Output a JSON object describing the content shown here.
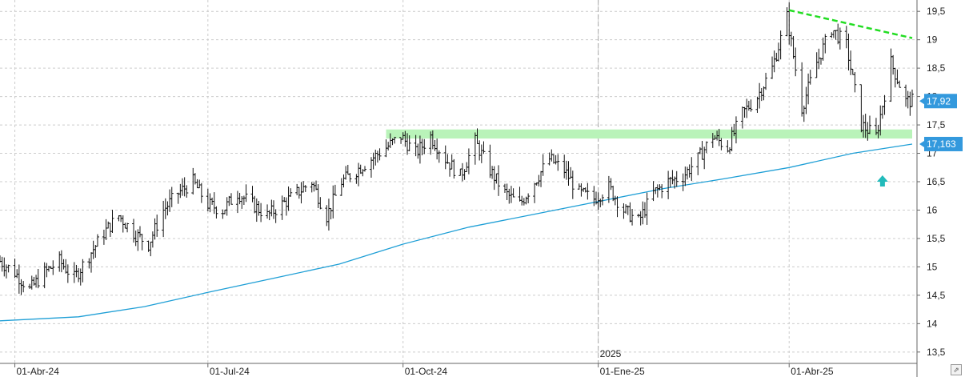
{
  "chart_data": {
    "type": "ohlc",
    "title": "",
    "xlabel": "",
    "ylabel": "",
    "ylim": [
      13.3,
      19.7
    ],
    "y_ticks": [
      "13,5",
      "14",
      "14,5",
      "15",
      "15,5",
      "16",
      "16,5",
      "17",
      "17,5",
      "18",
      "18,5",
      "19",
      "19,5"
    ],
    "y_tick_values": [
      13.5,
      14,
      14.5,
      15,
      15.5,
      16,
      16.5,
      17,
      17.5,
      18,
      18.5,
      19,
      19.5
    ],
    "x_ticks": [
      {
        "date": "2024-04-01",
        "label": "01-Abr-24"
      },
      {
        "date": "2024-07-01",
        "label": "01-Jul-24"
      },
      {
        "date": "2024-10-01",
        "label": "01-Oct-24"
      },
      {
        "date": "2025-01-01",
        "label": "01-Ene-25"
      },
      {
        "date": "2025-04-01",
        "label": "01-Abr-25"
      }
    ],
    "year_marker": {
      "date": "2025-01-01",
      "label": "2025"
    },
    "x_range": [
      "2024-03-25",
      "2025-05-29"
    ],
    "grid": true,
    "close_path": [
      [
        "2024-03-25",
        15.1
      ],
      [
        "2024-04-01",
        14.9
      ],
      [
        "2024-04-08",
        14.6
      ],
      [
        "2024-04-15",
        14.9
      ],
      [
        "2024-04-22",
        15.1
      ],
      [
        "2024-04-29",
        14.8
      ],
      [
        "2024-05-06",
        15.2
      ],
      [
        "2024-05-13",
        15.6
      ],
      [
        "2024-05-20",
        15.9
      ],
      [
        "2024-05-27",
        15.6
      ],
      [
        "2024-06-03",
        15.4
      ],
      [
        "2024-06-10",
        16.0
      ],
      [
        "2024-06-17",
        16.3
      ],
      [
        "2024-06-24",
        16.5
      ],
      [
        "2024-07-01",
        16.1
      ],
      [
        "2024-07-08",
        16.0
      ],
      [
        "2024-07-15",
        16.3
      ],
      [
        "2024-07-22",
        16.1
      ],
      [
        "2024-07-29",
        15.9
      ],
      [
        "2024-08-05",
        16.1
      ],
      [
        "2024-08-12",
        16.3
      ],
      [
        "2024-08-19",
        16.5
      ],
      [
        "2024-08-26",
        15.9
      ],
      [
        "2024-09-02",
        16.5
      ],
      [
        "2024-09-09",
        16.7
      ],
      [
        "2024-09-16",
        16.9
      ],
      [
        "2024-09-23",
        17.1
      ],
      [
        "2024-09-30",
        17.3
      ],
      [
        "2024-10-07",
        17.0
      ],
      [
        "2024-10-14",
        17.3
      ],
      [
        "2024-10-21",
        16.9
      ],
      [
        "2024-10-28",
        16.6
      ],
      [
        "2024-11-04",
        17.2
      ],
      [
        "2024-11-11",
        16.7
      ],
      [
        "2024-11-18",
        16.3
      ],
      [
        "2024-11-25",
        16.1
      ],
      [
        "2024-12-02",
        16.5
      ],
      [
        "2024-12-09",
        16.9
      ],
      [
        "2024-12-16",
        16.7
      ],
      [
        "2024-12-23",
        16.3
      ],
      [
        "2024-12-30",
        16.2
      ],
      [
        "2025-01-06",
        16.4
      ],
      [
        "2025-01-13",
        16.0
      ],
      [
        "2025-01-20",
        15.8
      ],
      [
        "2025-01-27",
        16.3
      ],
      [
        "2025-02-03",
        16.5
      ],
      [
        "2025-02-10",
        16.6
      ],
      [
        "2025-02-17",
        16.9
      ],
      [
        "2025-02-24",
        17.3
      ],
      [
        "2025-03-03",
        17.1
      ],
      [
        "2025-03-10",
        17.7
      ],
      [
        "2025-03-17",
        18.0
      ],
      [
        "2025-03-24",
        18.5
      ],
      [
        "2025-03-31",
        19.4
      ],
      [
        "2025-04-07",
        17.8
      ],
      [
        "2025-04-14",
        18.6
      ],
      [
        "2025-04-21",
        19.2
      ],
      [
        "2025-04-28",
        18.9
      ],
      [
        "2025-05-05",
        17.5
      ],
      [
        "2025-05-12",
        17.3
      ],
      [
        "2025-05-19",
        18.6
      ],
      [
        "2025-05-26",
        17.92
      ]
    ],
    "moving_average": [
      [
        "2024-03-25",
        14.05
      ],
      [
        "2024-05-01",
        14.12
      ],
      [
        "2024-06-01",
        14.3
      ],
      [
        "2024-07-01",
        14.55
      ],
      [
        "2024-08-01",
        14.8
      ],
      [
        "2024-09-01",
        15.05
      ],
      [
        "2024-10-01",
        15.4
      ],
      [
        "2024-11-01",
        15.7
      ],
      [
        "2024-12-01",
        15.92
      ],
      [
        "2025-01-01",
        16.15
      ],
      [
        "2025-02-01",
        16.38
      ],
      [
        "2025-03-01",
        16.55
      ],
      [
        "2025-04-01",
        16.75
      ],
      [
        "2025-05-01",
        17.0
      ],
      [
        "2025-05-29",
        17.163
      ]
    ],
    "resistance_line": [
      [
        "2025-04-01",
        19.52
      ],
      [
        "2025-05-29",
        19.03
      ]
    ],
    "support_zone": [
      17.26,
      17.42
    ],
    "support_zone_start": "2024-09-23",
    "last_price": {
      "label": "17,92",
      "value": 17.92
    },
    "ma_value": {
      "label": "17,163",
      "value": 17.163
    },
    "arrow_marker": {
      "date": "2025-05-15",
      "value": 16.5
    },
    "colors": {
      "bars": "#111111",
      "moving_average": "#1f9fd6",
      "resistance": "#22dd22",
      "support": "#b9f3b9",
      "price_tag": "#3399dd",
      "arrow": "#22bbbb",
      "grid": "#cccccc",
      "axis": "#666666"
    }
  }
}
